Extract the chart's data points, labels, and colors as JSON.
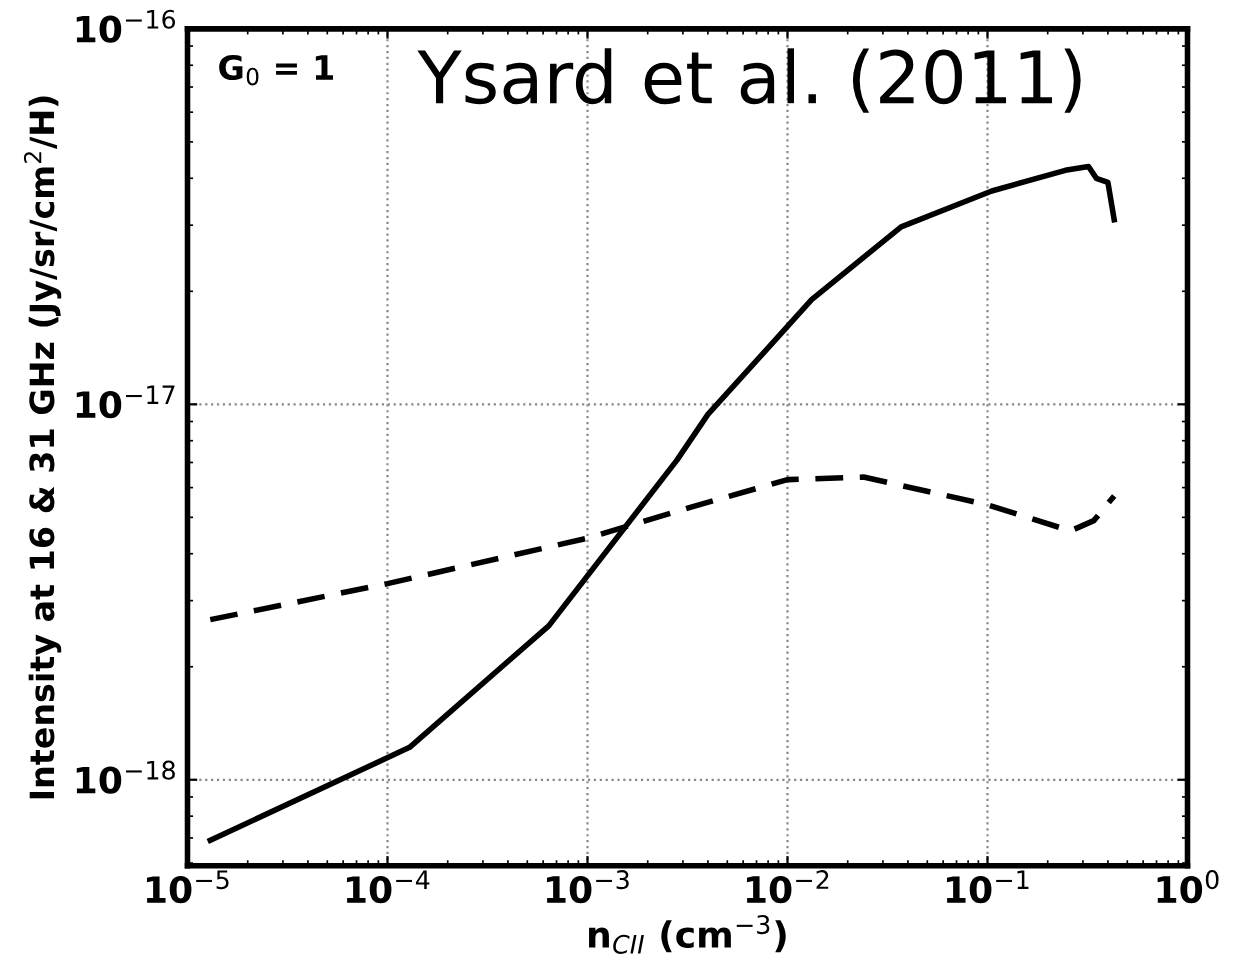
{
  "chart_data": {
    "type": "line",
    "xlabel": "n$_{CII}$ (cm$^{−3}$)",
    "ylabel": "Intensity at 16 & 31 GHz (Jy/sr/cm$^{2}$/H)",
    "log": "xy",
    "grid": true,
    "marker": "none",
    "annotations": [
      "G$_{0}$ = 1",
      "Ysard et al. (2011)"
    ],
    "xlim": [
      1e-05,
      1
    ],
    "ylim": [
      5.9e-19,
      1e-16
    ],
    "xticks": [
      {
        "value": 1e-05,
        "label": "10$^{−5}$"
      },
      {
        "value": 0.0001,
        "label": "10$^{−4}$"
      },
      {
        "value": 0.001,
        "label": "10$^{−3}$"
      },
      {
        "value": 0.01,
        "label": "10$^{−2}$"
      },
      {
        "value": 0.1,
        "label": "10$^{−1}$"
      },
      {
        "value": 1,
        "label": "10$^{0}$"
      }
    ],
    "yticks": [
      {
        "value": 1e-18,
        "label": "10$^{−18}$"
      },
      {
        "value": 1e-17,
        "label": "10$^{−17}$"
      },
      {
        "value": 1e-16,
        "label": "10$^{−16}$"
      }
    ],
    "series": [
      {
        "color": "#000000",
        "line_style": "solid",
        "x": [
          1.3e-05,
          0.000129,
          0.00064,
          0.0028,
          0.004,
          0.0132,
          0.037,
          0.105,
          0.245,
          0.32,
          0.35,
          0.4,
          0.43
        ],
        "values": [
          6.9e-19,
          1.22e-18,
          2.57e-18,
          7.1e-18,
          9.4e-18,
          1.9e-17,
          2.97e-17,
          3.7e-17,
          4.2e-17,
          4.3e-17,
          4e-17,
          3.9e-17,
          3.1e-17
        ]
      },
      {
        "color": "#000000",
        "line_style": "dashed",
        "x": [
          1.3e-05,
          0.0001,
          0.001,
          0.0032,
          0.01,
          0.024,
          0.1,
          0.26,
          0.34,
          0.43
        ],
        "values": [
          2.67e-18,
          3.33e-18,
          4.4e-18,
          5.3e-18,
          6.3e-18,
          6.4e-18,
          5.4e-18,
          4.6e-18,
          4.9e-18,
          5.7e-18
        ]
      }
    ]
  }
}
